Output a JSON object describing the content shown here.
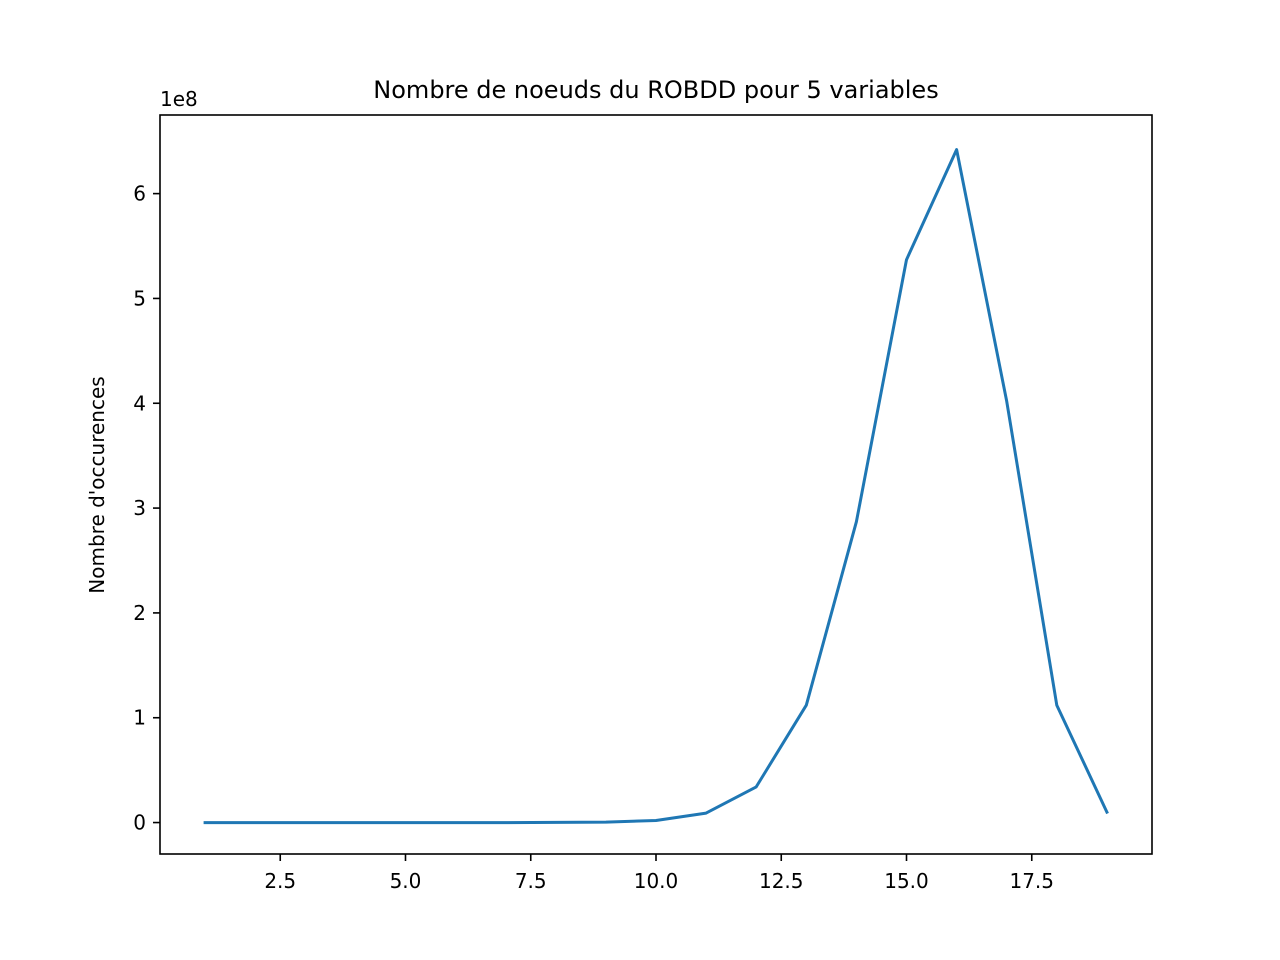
{
  "chart_data": {
    "type": "line",
    "title": "Nombre de noeuds du ROBDD pour 5 variables",
    "xlabel": "",
    "ylabel": "Nombre d'occurences",
    "y_offset_label": "1e8",
    "xlim": [
      0.1,
      19.9
    ],
    "ylim": [
      -0.3,
      6.75
    ],
    "x_ticks": [
      2.5,
      5.0,
      7.5,
      10.0,
      12.5,
      15.0,
      17.5
    ],
    "x_tick_labels": [
      "2.5",
      "5.0",
      "7.5",
      "10.0",
      "12.5",
      "15.0",
      "17.5"
    ],
    "y_ticks": [
      0,
      1,
      2,
      3,
      4,
      5,
      6
    ],
    "y_tick_labels": [
      "0",
      "1",
      "2",
      "3",
      "4",
      "5",
      "6"
    ],
    "grid": false,
    "series": [
      {
        "color": "#1f77b4",
        "x": [
          1,
          2,
          3,
          4,
          5,
          6,
          7,
          8,
          9,
          10,
          11,
          12,
          13,
          14,
          15,
          16,
          17,
          18,
          19
        ],
        "y": [
          0,
          0,
          0,
          0,
          0,
          0,
          0,
          0.001,
          0.004,
          0.02,
          0.09,
          0.34,
          1.12,
          2.87,
          5.37,
          6.42,
          4.02,
          1.12,
          0.1
        ]
      }
    ]
  }
}
